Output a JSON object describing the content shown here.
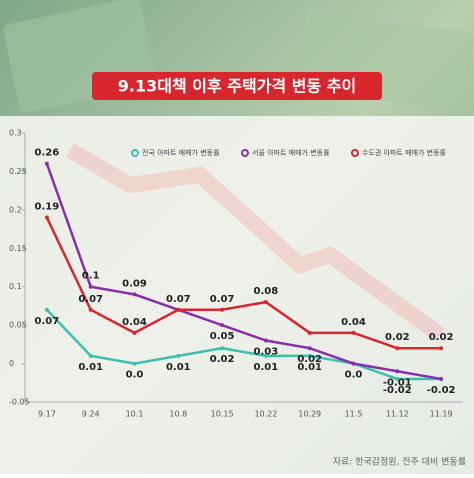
{
  "chart_data": {
    "type": "line",
    "title": "9.13대책 이후 주택가격 변동 추이",
    "source": "자료: 한국감정원, 전주 대비 변동률",
    "categories": [
      "9.17",
      "9.24",
      "10.1",
      "10.8",
      "10.15",
      "10.22",
      "10.29",
      "11.5",
      "11.12",
      "11.19"
    ],
    "series": [
      {
        "name": "전국 아파트 매매가 변동률",
        "color": "#3dbfb0",
        "values": [
          0.07,
          0.01,
          0,
          0.01,
          0.02,
          0.01,
          0.01,
          0,
          -0.02,
          -0.02
        ],
        "value_labels": [
          "0.07",
          "0.01",
          "0.0",
          "0.01",
          "0.02",
          "0.01",
          "0.01",
          "0.0",
          "-0.02",
          "-0.02"
        ]
      },
      {
        "name": "서울 아파트 매매가 변동률",
        "color": "#8a2fa8",
        "values": [
          0.26,
          0.1,
          0.09,
          0.07,
          0.05,
          0.03,
          0.02,
          0,
          -0.01,
          -0.02
        ],
        "value_labels": [
          "0.26",
          "0.1",
          "0.09",
          null,
          "0.05",
          "0.03",
          "0.02",
          null,
          "-0.01",
          null
        ]
      },
      {
        "name": "수도권 아파트 매매가 변동률",
        "color": "#d8262f",
        "values": [
          0.19,
          0.07,
          0.04,
          0.07,
          0.07,
          0.08,
          0.04,
          0.04,
          0.02,
          0.02
        ],
        "value_labels": [
          "0.19",
          "0.07",
          "0.04",
          "0.07",
          "0.07",
          "0.08",
          null,
          "0.04",
          "0.02",
          "0.02"
        ]
      }
    ],
    "ylim": [
      -0.05,
      0.3
    ],
    "yticks": [
      0.3,
      0.25,
      0.2,
      0.15,
      0.1,
      0.05,
      0,
      -0.05
    ],
    "grid": false
  }
}
